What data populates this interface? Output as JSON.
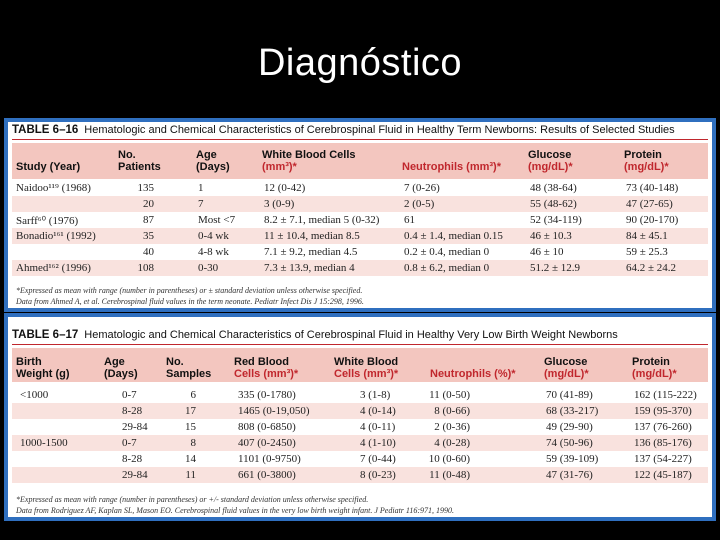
{
  "slide_title": "Diagnóstico",
  "table1": {
    "number": "TABLE 6–16",
    "caption": "Hematologic and Chemical Characteristics of Cerebrospinal Fluid in Healthy Term Newborns: Results of Selected Studies",
    "headers": {
      "study": [
        "Study (Year)"
      ],
      "patients": [
        "No.",
        "Patients"
      ],
      "age": [
        "Age",
        "(Days)"
      ],
      "wbc": [
        "White Blood Cells",
        "(mm³)*"
      ],
      "neut": [
        "Neutrophils (mm³)*"
      ],
      "glucose": [
        "Glucose",
        "(mg/dL)*"
      ],
      "protein": [
        "Protein",
        "(mg/dL)*"
      ]
    },
    "rows": [
      [
        "Naidoo¹¹⁹ (1968)",
        "135",
        "1",
        "12 (0-42)",
        "7 (0-26)",
        "48 (38-64)",
        "73 (40-148)"
      ],
      [
        "",
        "20",
        "7",
        "3 (0-9)",
        "2 (0-5)",
        "55 (48-62)",
        "47 (27-65)"
      ],
      [
        "Sarff⁶⁰ (1976)",
        "87",
        "Most <7",
        "8.2 ± 7.1, median 5 (0-32)",
        "61",
        "52 (34-119)",
        "90 (20-170)"
      ],
      [
        "Bonadio¹⁶¹ (1992)",
        "35",
        "0-4 wk",
        "11 ± 10.4, median 8.5",
        "0.4 ± 1.4, median 0.15",
        "46 ± 10.3",
        "84 ± 45.1"
      ],
      [
        "",
        "40",
        "4-8 wk",
        "7.1 ± 9.2, median 4.5",
        "0.2 ± 0.4, median 0",
        "46 ± 10",
        "59 ± 25.3"
      ],
      [
        "Ahmed¹⁶² (1996)",
        "108",
        "0-30",
        "7.3 ± 13.9, median 4",
        "0.8 ± 6.2, median 0",
        "51.2 ± 12.9",
        "64.2 ± 24.2"
      ]
    ],
    "footnotes": [
      "*Expressed as mean with range (number in parentheses) or ± standard deviation unless otherwise specified.",
      "Data from Ahmed A, et al. Cerebrospinal fluid values in the term neonate. Pediatr Infect Dis J 15:298, 1996."
    ]
  },
  "table2": {
    "number": "TABLE 6–17",
    "caption": "Hematologic and Chemical Characteristics of Cerebrospinal Fluid in Healthy Very Low Birth Weight Newborns",
    "headers": {
      "bw": [
        "Birth",
        "Weight (g)"
      ],
      "age": [
        "Age",
        "(Days)"
      ],
      "samples": [
        "No.",
        "Samples"
      ],
      "rbc": [
        "Red Blood",
        "Cells (mm³)*"
      ],
      "wbc": [
        "White Blood",
        "Cells (mm³)*"
      ],
      "neut": [
        "Neutrophils (%)*"
      ],
      "glucose": [
        "Glucose",
        "(mg/dL)*"
      ],
      "protein": [
        "Protein",
        "(mg/dL)*"
      ]
    },
    "rows": [
      [
        "<1000",
        "0-7",
        "6",
        "335 (0-1780)",
        "3 (1-8)",
        "11 (0-50)",
        "70 (41-89)",
        "162 (115-222)"
      ],
      [
        "",
        "8-28",
        "17",
        "1465 (0-19,050)",
        "4 (0-14)",
        "8 (0-66)",
        "68 (33-217)",
        "159 (95-370)"
      ],
      [
        "",
        "29-84",
        "15",
        "808 (0-6850)",
        "4 (0-11)",
        "2 (0-36)",
        "49 (29-90)",
        "137 (76-260)"
      ],
      [
        "1000-1500",
        "0-7",
        "8",
        "407 (0-2450)",
        "4 (1-10)",
        "4 (0-28)",
        "74 (50-96)",
        "136 (85-176)"
      ],
      [
        "",
        "8-28",
        "14",
        "1101 (0-9750)",
        "7 (0-44)",
        "10 (0-60)",
        "59 (39-109)",
        "137 (54-227)"
      ],
      [
        "",
        "29-84",
        "11",
        "661 (0-3800)",
        "8 (0-23)",
        "11 (0-48)",
        "47 (31-76)",
        "122 (45-187)"
      ]
    ],
    "footnotes": [
      "*Expressed as mean with range (number in parentheses) or +/- standard deviation unless otherwise specified.",
      "Data from Rodriguez AF, Kaplan SL, Mason EO. Cerebrospinal fluid values in the very low birth weight infant. J Pediatr 116:971, 1990."
    ]
  }
}
